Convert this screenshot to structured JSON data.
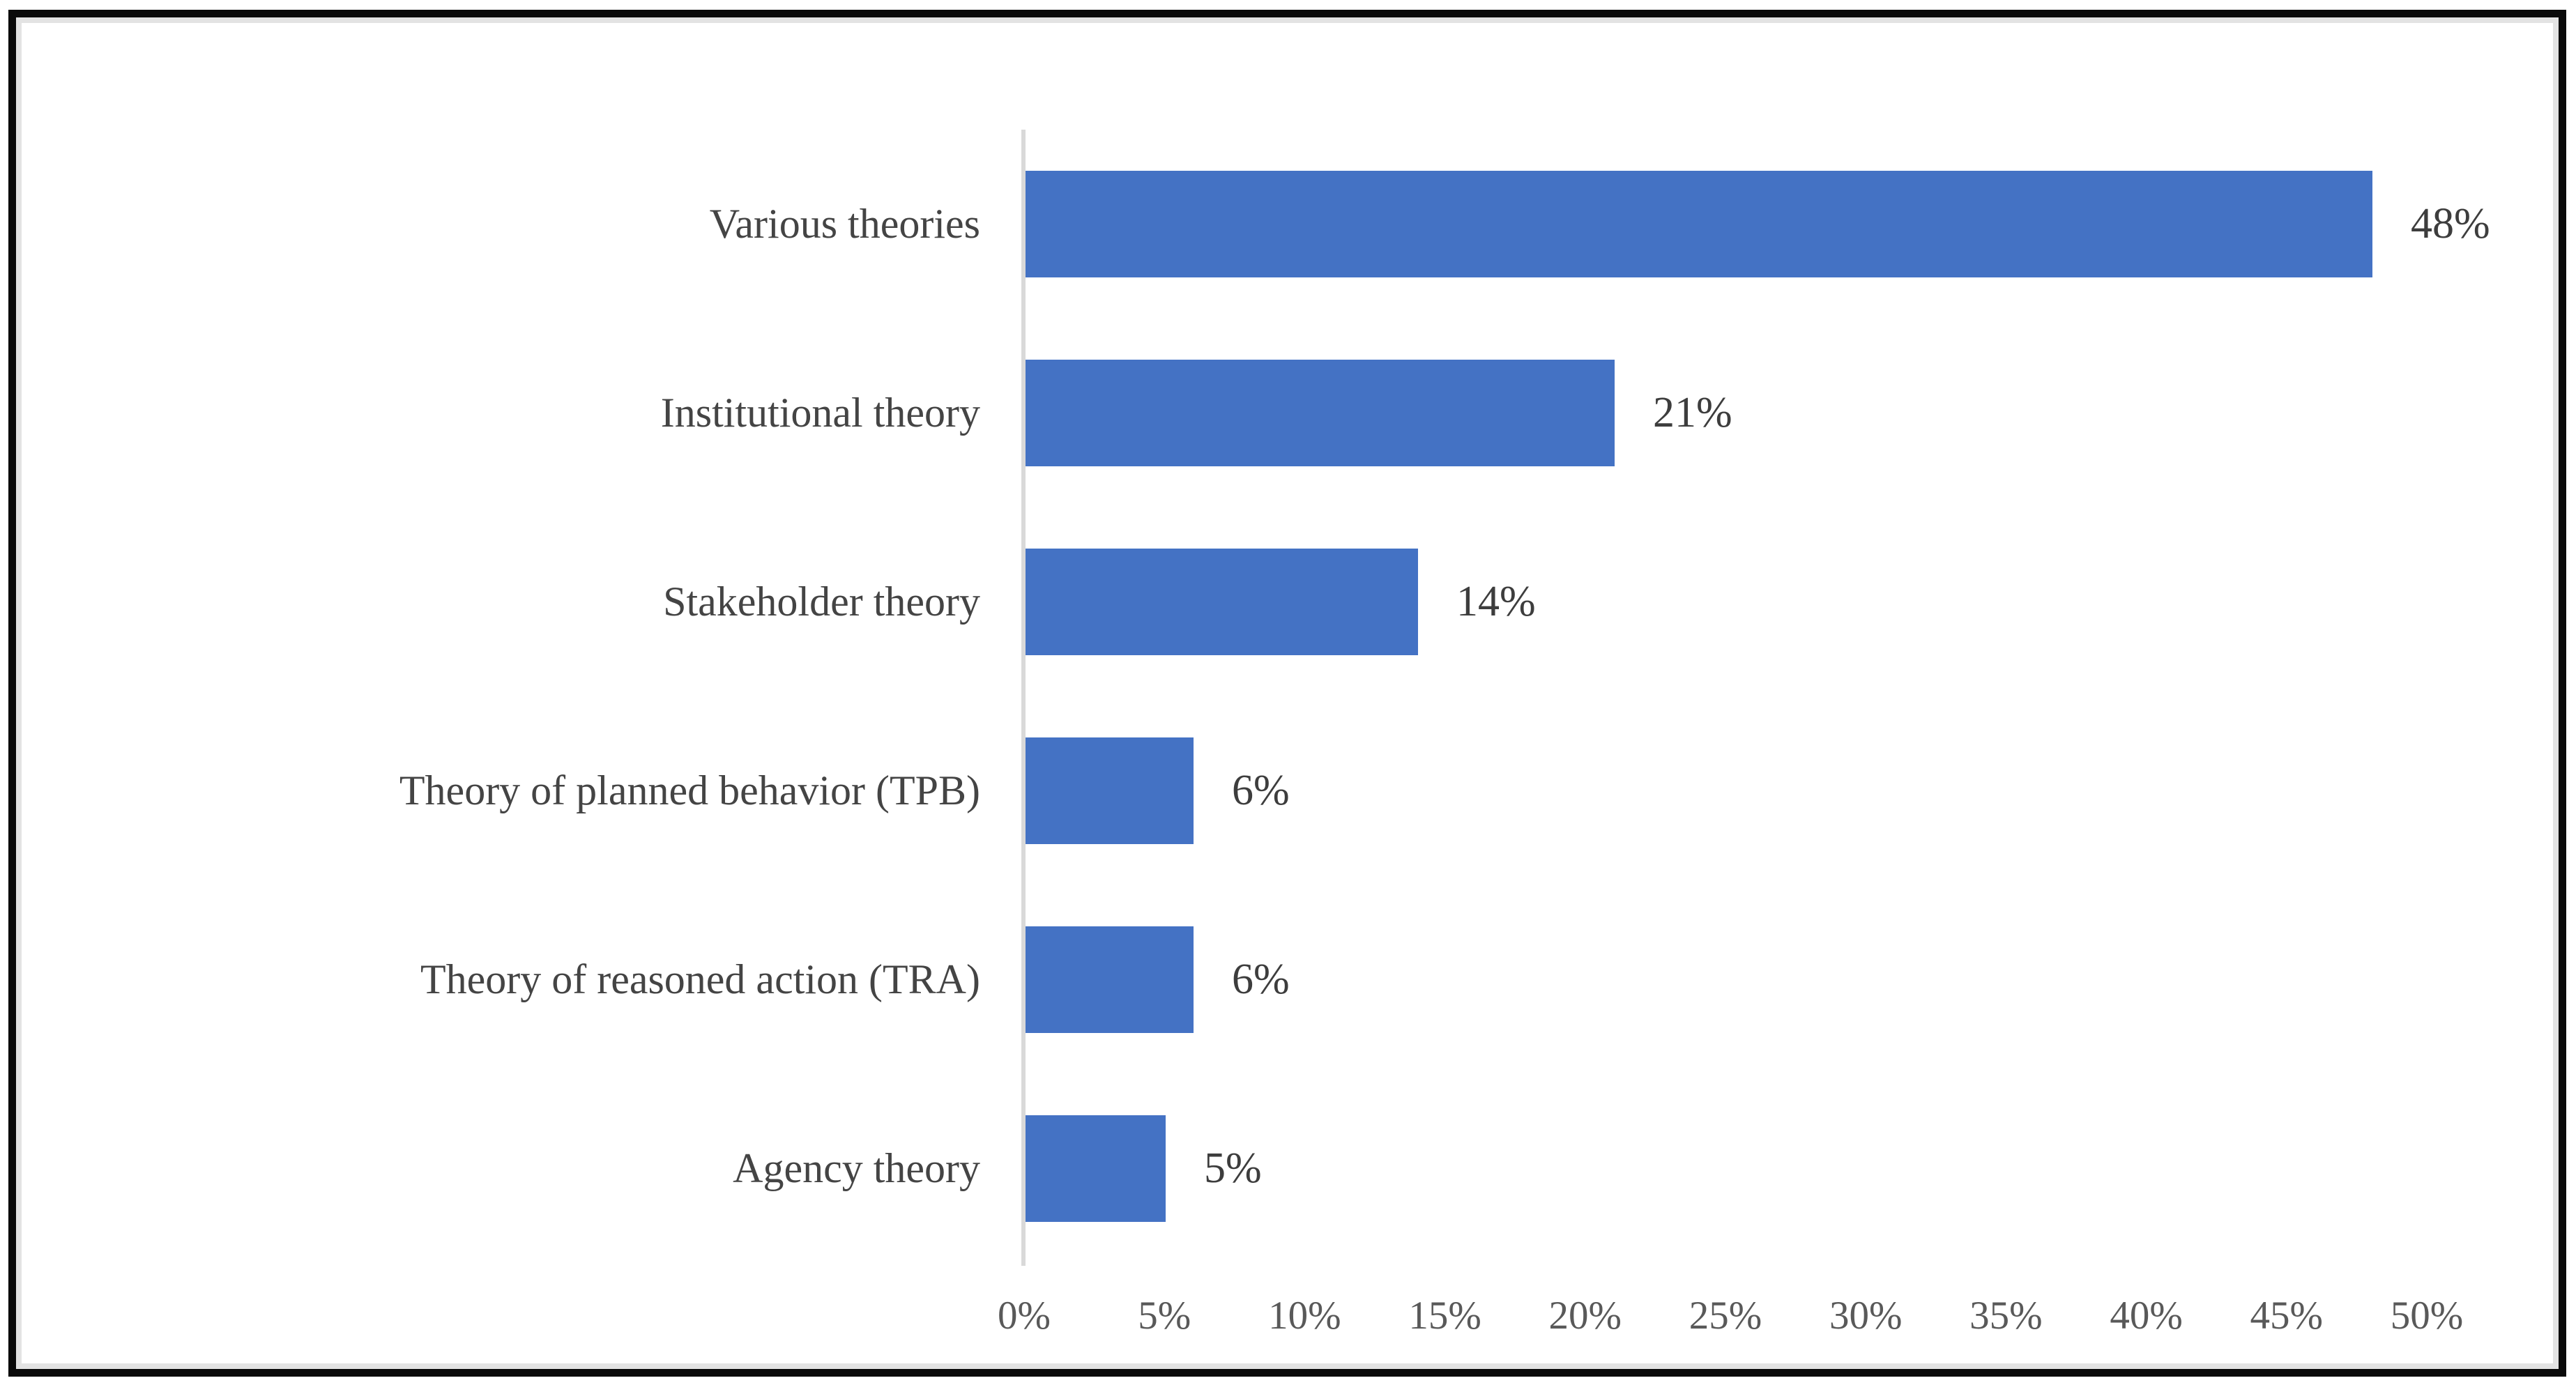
{
  "chart_data": {
    "type": "bar",
    "orientation": "horizontal",
    "title": "",
    "xlabel": "",
    "ylabel": "",
    "categories": [
      "Various theories",
      "Institutional theory",
      "Stakeholder theory",
      "Theory of planned behavior (TPB)",
      "Theory of reasoned action (TRA)",
      "Agency theory"
    ],
    "values": [
      48,
      21,
      14,
      6,
      6,
      5
    ],
    "data_labels": [
      "48%",
      "21%",
      "14%",
      "6%",
      "6%",
      "5%"
    ],
    "x_tick_labels": [
      "0%",
      "5%",
      "10%",
      "15%",
      "20%",
      "25%",
      "30%",
      "35%",
      "40%",
      "45%",
      "50%"
    ],
    "xlim": [
      0,
      50
    ],
    "grid": false,
    "legend": false,
    "bar_color": "#4472C4",
    "axis_line_color": "#D9D9D9",
    "category_label_color": "#444444",
    "data_label_color": "#3D3D3D",
    "tick_label_color": "#595959"
  }
}
